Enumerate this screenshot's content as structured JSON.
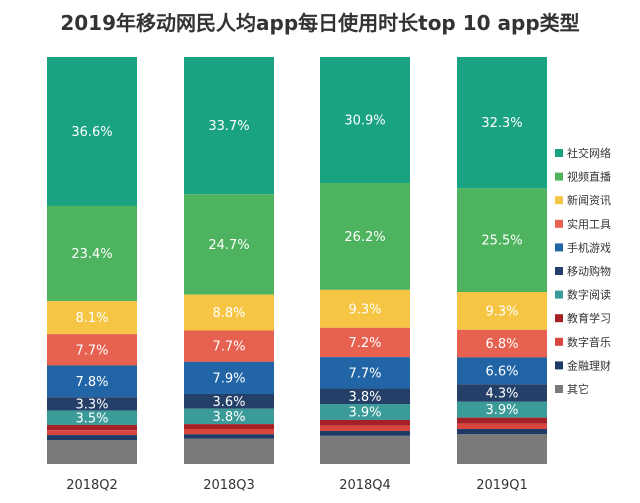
{
  "chart_data": {
    "type": "bar",
    "stacked": true,
    "title": "2019年移动网民人均app每日使用时长top 10 app类型",
    "categories": [
      "2018Q2",
      "2018Q3",
      "2018Q4",
      "2019Q1"
    ],
    "legend_position": "right",
    "grid": false,
    "series": [
      {
        "name": "社交网络",
        "color": "#1aa383",
        "values": [
          36.6,
          33.7,
          30.9,
          32.3
        ]
      },
      {
        "name": "视频直播",
        "color": "#4db35e",
        "values": [
          23.4,
          24.7,
          26.2,
          25.5
        ]
      },
      {
        "name": "新闻资讯",
        "color": "#f6c543",
        "values": [
          8.1,
          8.8,
          9.3,
          9.3
        ]
      },
      {
        "name": "实用工具",
        "color": "#e6614f",
        "values": [
          7.7,
          7.7,
          7.2,
          6.8
        ]
      },
      {
        "name": "手机游戏",
        "color": "#2165a6",
        "values": [
          7.8,
          7.9,
          7.7,
          6.6
        ]
      },
      {
        "name": "移动购物",
        "color": "#243f68",
        "values": [
          3.3,
          3.6,
          3.8,
          4.3
        ]
      },
      {
        "name": "数字阅读",
        "color": "#3a9b98",
        "values": [
          3.5,
          3.8,
          3.9,
          3.9
        ]
      },
      {
        "name": "教育学习",
        "color": "#a62126",
        "values": [
          1.3,
          1.3,
          1.4,
          1.5
        ]
      },
      {
        "name": "数字音乐",
        "color": "#d9453d",
        "values": [
          1.2,
          1.2,
          1.3,
          1.3
        ]
      },
      {
        "name": "金融理财",
        "color": "#1d3966",
        "values": [
          1.2,
          1.1,
          1.2,
          1.3
        ]
      },
      {
        "name": "其它",
        "color": "#7a7a7a",
        "values": [
          5.9,
          6.2,
          6.9,
          7.3
        ]
      }
    ],
    "labels": [
      [
        "36.6%",
        "23.4%",
        "8.1%",
        "7.7%",
        "7.8%",
        "3.3%",
        "3.5%",
        "",
        "",
        "",
        ""
      ],
      [
        "33.7%",
        "24.7%",
        "8.8%",
        "7.7%",
        "7.9%",
        "3.6%",
        "3.8%",
        "",
        "",
        "",
        ""
      ],
      [
        "30.9%",
        "26.2%",
        "9.3%",
        "7.2%",
        "7.7%",
        "3.8%",
        "3.9%",
        "",
        "",
        "",
        ""
      ],
      [
        "32.3%",
        "25.5%",
        "9.3%",
        "6.8%",
        "6.6%",
        "4.3%",
        "3.9%",
        "",
        "",
        "",
        ""
      ]
    ]
  }
}
